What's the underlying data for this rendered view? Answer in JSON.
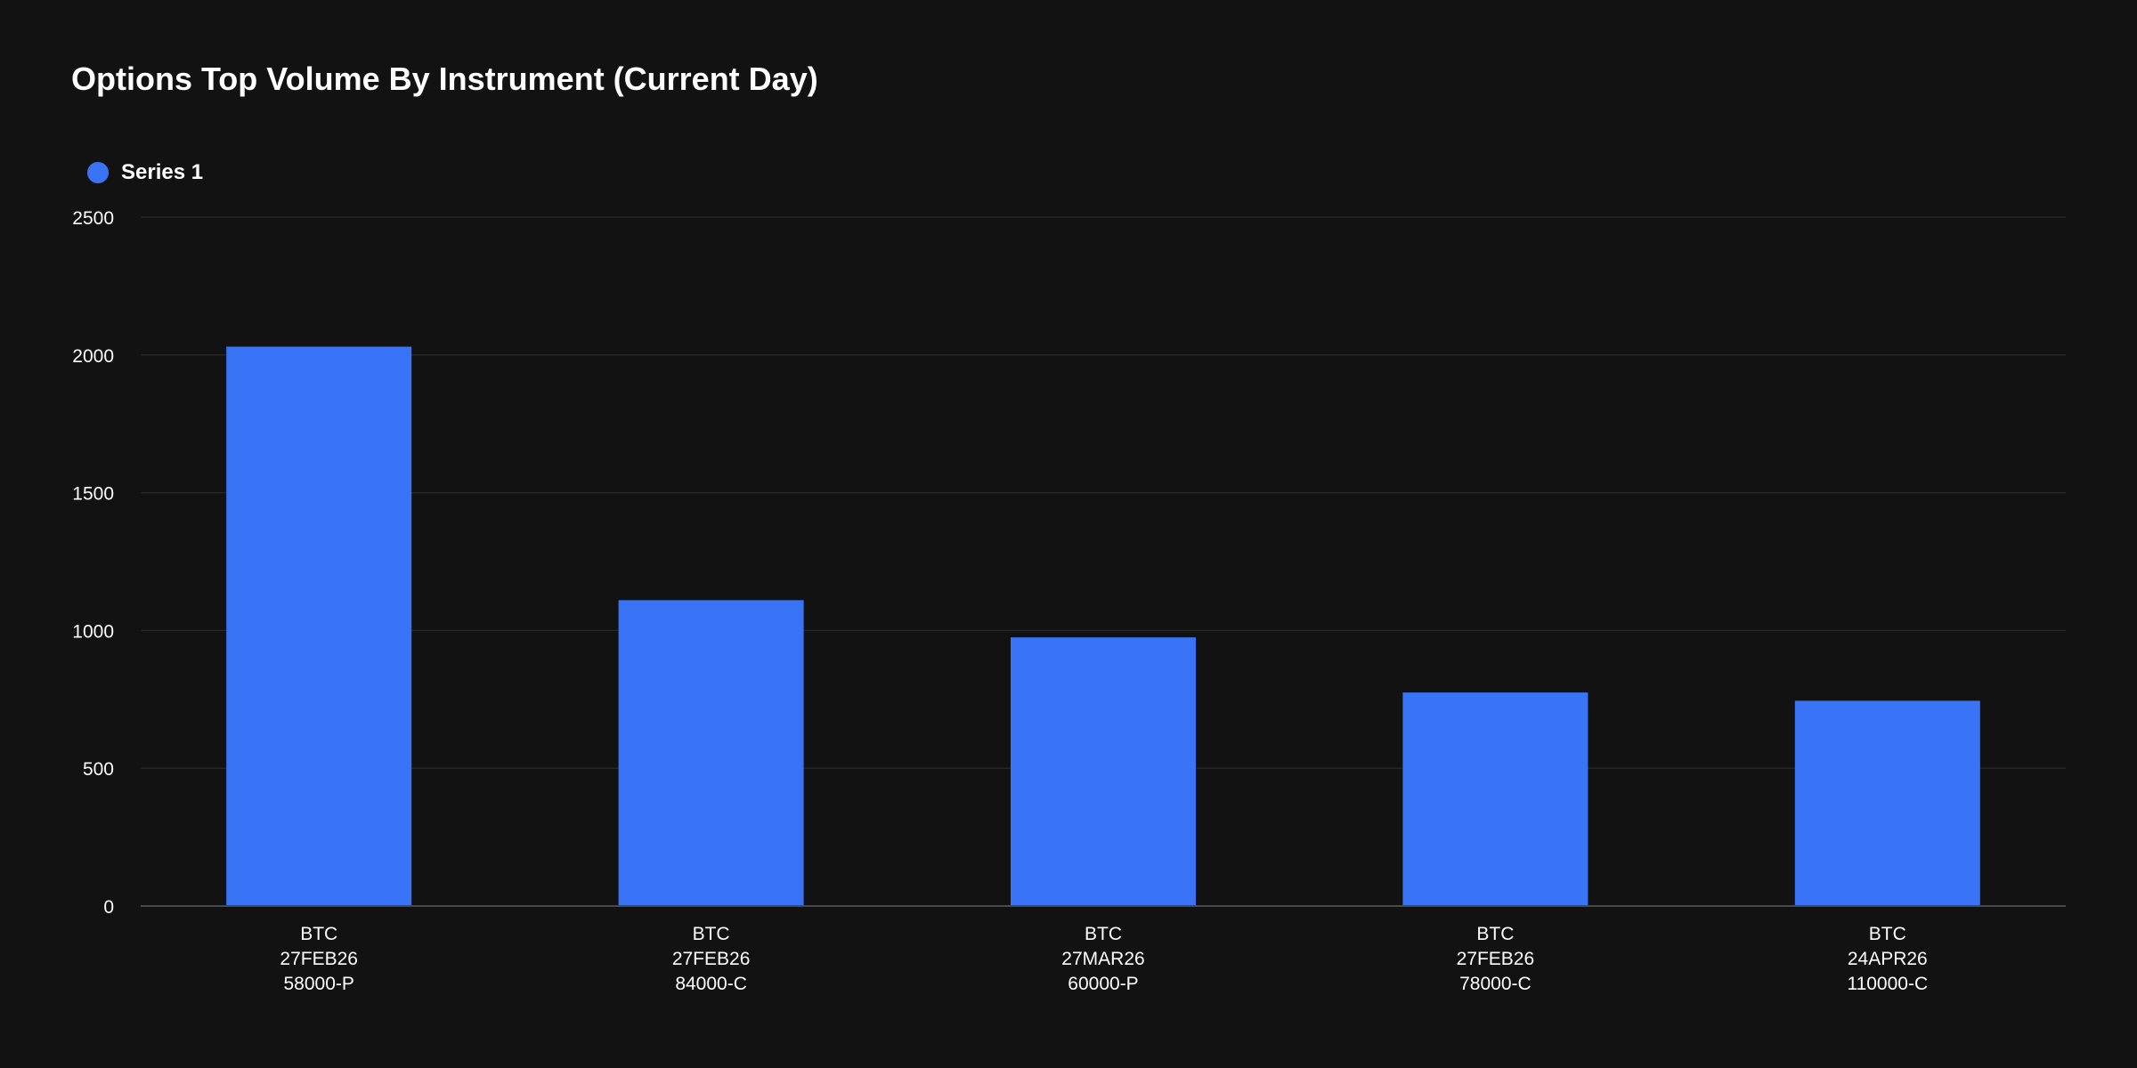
{
  "chart_data": {
    "type": "bar",
    "title": "Options Top Volume By Instrument (Current Day)",
    "categories": [
      [
        "BTC",
        "27FEB26",
        "58000-P"
      ],
      [
        "BTC",
        "27FEB26",
        "84000-C"
      ],
      [
        "BTC",
        "27MAR26",
        "60000-P"
      ],
      [
        "BTC",
        "27FEB26",
        "78000-C"
      ],
      [
        "BTC",
        "24APR26",
        "110000-C"
      ]
    ],
    "series": [
      {
        "name": "Series 1",
        "color": "#3874f5",
        "values": [
          2030,
          1110,
          975,
          775,
          745
        ]
      }
    ],
    "yticks": [
      0,
      500,
      1000,
      1500,
      2000,
      2500
    ],
    "ylim": [
      0,
      2500
    ],
    "xlabel": "",
    "ylabel": "",
    "grid": true,
    "legend_position": "top-left"
  },
  "colors": {
    "background": "#121212",
    "grid": "#262626",
    "axis": "#4a4a4a"
  }
}
